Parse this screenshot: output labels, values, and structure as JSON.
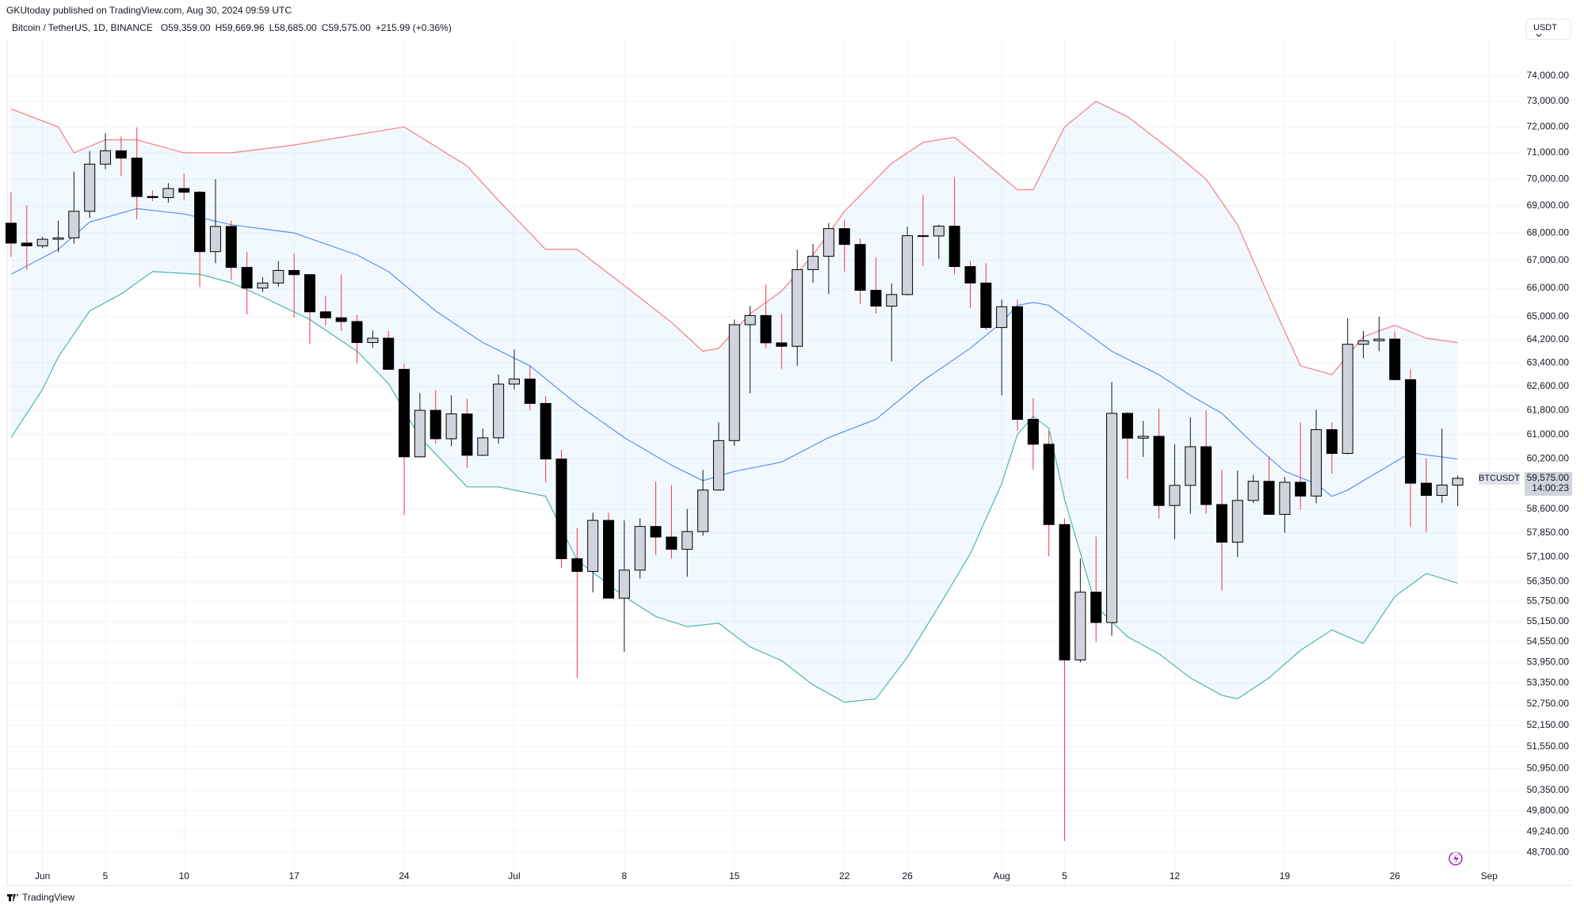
{
  "header": {
    "published": "GKUtoday published on TradingView.com, Aug 30, 2024 09:59 UTC",
    "symbol": "Bitcoin / TetherUS, 1D, BINANCE",
    "legend": [
      "O59,359.00",
      "H59,669.96",
      "L58,685.00",
      "C59,575.00",
      "+215.99 (+0.36%)"
    ],
    "currency": "USDT"
  },
  "footer": {
    "brand": "TradingView"
  },
  "chart_data": {
    "type": "candlestick",
    "log_scale": true,
    "grid": true,
    "ylim": [
      48371,
      75470
    ],
    "yticks": [
      {
        "value": 74000,
        "label": "74,000.00"
      },
      {
        "value": 73000,
        "label": "73,000.00"
      },
      {
        "value": 72000,
        "label": "72,000.00"
      },
      {
        "value": 71000,
        "label": "71,000.00"
      },
      {
        "value": 70000,
        "label": "70,000.00"
      },
      {
        "value": 69000,
        "label": "69,000.00"
      },
      {
        "value": 68000,
        "label": "68,000.00"
      },
      {
        "value": 67000,
        "label": "67,000.00"
      },
      {
        "value": 66000,
        "label": "66,000.00"
      },
      {
        "value": 65000,
        "label": "65,000.00"
      },
      {
        "value": 64200,
        "label": "64,200.00"
      },
      {
        "value": 63400,
        "label": "63,400.00"
      },
      {
        "value": 62600,
        "label": "62,600.00"
      },
      {
        "value": 61800,
        "label": "61,800.00"
      },
      {
        "value": 61000,
        "label": "61,000.00"
      },
      {
        "value": 60200,
        "label": "60,200.00"
      },
      {
        "value": 58600,
        "label": "58,600.00"
      },
      {
        "value": 57850,
        "label": "57,850.00"
      },
      {
        "value": 57100,
        "label": "57,100.00"
      },
      {
        "value": 56350,
        "label": "56,350.00"
      },
      {
        "value": 55750,
        "label": "55,750.00"
      },
      {
        "value": 55150,
        "label": "55,150.00"
      },
      {
        "value": 54550,
        "label": "54,550.00"
      },
      {
        "value": 53950,
        "label": "53,950.00"
      },
      {
        "value": 53350,
        "label": "53,350.00"
      },
      {
        "value": 52750,
        "label": "52,750.00"
      },
      {
        "value": 52150,
        "label": "52,150.00"
      },
      {
        "value": 51550,
        "label": "51,550.00"
      },
      {
        "value": 50950,
        "label": "50,950.00"
      },
      {
        "value": 50350,
        "label": "50,350.00"
      },
      {
        "value": 49800,
        "label": "49,800.00"
      },
      {
        "value": 49240,
        "label": "49,240.00"
      },
      {
        "value": 48700,
        "label": "48,700.00"
      }
    ],
    "xlim": [
      -0.25,
      96
    ],
    "xticks": [
      {
        "value": 2,
        "label": "Jun"
      },
      {
        "value": 6,
        "label": "5"
      },
      {
        "value": 11,
        "label": "10"
      },
      {
        "value": 18,
        "label": "17"
      },
      {
        "value": 25,
        "label": "24"
      },
      {
        "value": 32,
        "label": "Jul"
      },
      {
        "value": 39,
        "label": "8"
      },
      {
        "value": 46,
        "label": "15"
      },
      {
        "value": 53,
        "label": "22"
      },
      {
        "value": 57,
        "label": "26"
      },
      {
        "value": 63,
        "label": "Aug"
      },
      {
        "value": 67,
        "label": "5"
      },
      {
        "value": 74,
        "label": "12"
      },
      {
        "value": 81,
        "label": "19"
      },
      {
        "value": 88,
        "label": "26"
      },
      {
        "value": 94,
        "label": "Sep"
      }
    ],
    "candles": {
      "open": [
        68360,
        67630,
        67530,
        67770,
        67820,
        68800,
        70570,
        71080,
        70800,
        69350,
        69310,
        69650,
        69510,
        67320,
        68240,
        66750,
        66010,
        66190,
        66640,
        66490,
        65170,
        64960,
        64830,
        64100,
        64250,
        63180,
        60270,
        61800,
        60860,
        61680,
        60320,
        60890,
        62680,
        62850,
        62030,
        60200,
        57050,
        56660,
        58240,
        55850,
        56700,
        58050,
        57720,
        57340,
        57890,
        59200,
        60800,
        64720,
        65040,
        64090,
        63970,
        66670,
        67150,
        68160,
        67580,
        65930,
        65370,
        65780,
        67900,
        67890,
        68250,
        66780,
        66190,
        64620,
        65350,
        61500,
        60680,
        58110,
        54020,
        56030,
        55120,
        61700,
        60880,
        60940,
        58710,
        59350,
        60600,
        58740,
        57560,
        58870,
        59480,
        58430,
        59450,
        59010,
        61160,
        60380,
        64040,
        64160,
        64220,
        62830,
        59420,
        59030,
        59359
      ],
      "high": [
        69500,
        69020,
        67860,
        68450,
        70290,
        71070,
        71760,
        71630,
        71990,
        69580,
        69850,
        70200,
        69560,
        69999,
        68450,
        67300,
        66400,
        66980,
        67250,
        66500,
        65730,
        66490,
        65060,
        64520,
        64500,
        63370,
        62380,
        62480,
        62300,
        62180,
        61200,
        63000,
        63860,
        63290,
        62290,
        60500,
        58000,
        58480,
        58480,
        58240,
        58300,
        59470,
        59360,
        58600,
        59850,
        61400,
        64900,
        65380,
        66130,
        65100,
        67390,
        67600,
        68370,
        68480,
        67800,
        67100,
        66170,
        68230,
        69400,
        68300,
        70080,
        66980,
        66900,
        65600,
        65600,
        62200,
        61130,
        58300,
        57050,
        57730,
        62750,
        61750,
        61450,
        61860,
        60680,
        61570,
        61800,
        59850,
        59820,
        59690,
        60270,
        59620,
        61400,
        61820,
        61400,
        64950,
        64500,
        65000,
        64480,
        63200,
        60230,
        61190,
        59669.96
      ],
      "low": [
        67130,
        66670,
        67450,
        67300,
        67610,
        68560,
        70380,
        70120,
        68500,
        69180,
        69120,
        69220,
        66050,
        66900,
        66300,
        65080,
        65870,
        66060,
        64970,
        64060,
        64690,
        64500,
        63380,
        63920,
        63180,
        58400,
        60250,
        60700,
        60620,
        59900,
        60300,
        60700,
        62500,
        61800,
        59450,
        56770,
        53500,
        56020,
        55850,
        54260,
        56440,
        57160,
        57050,
        56500,
        57760,
        59200,
        60630,
        62370,
        63900,
        63200,
        63300,
        66200,
        65800,
        66600,
        65440,
        65110,
        63450,
        65750,
        66800,
        67050,
        66500,
        65320,
        64530,
        62300,
        61120,
        59850,
        57120,
        49000,
        53950,
        54550,
        54730,
        59550,
        60270,
        58300,
        57650,
        58450,
        58450,
        56080,
        57100,
        58790,
        58430,
        57850,
        58580,
        58780,
        59720,
        60350,
        63560,
        63800,
        62800,
        58030,
        57860,
        58790,
        58685
      ],
      "close": [
        67630,
        67530,
        67770,
        67820,
        68800,
        70570,
        71080,
        70800,
        69350,
        69310,
        69650,
        69510,
        67320,
        68240,
        66750,
        66010,
        66190,
        66640,
        66490,
        65170,
        64960,
        64830,
        64100,
        64250,
        63180,
        60270,
        61800,
        60860,
        61680,
        60320,
        60890,
        62680,
        62850,
        62030,
        60200,
        57050,
        56660,
        58240,
        55850,
        56700,
        58050,
        57720,
        57340,
        57890,
        59200,
        60800,
        64720,
        65040,
        64090,
        63970,
        66670,
        67150,
        68160,
        67580,
        65930,
        65370,
        65780,
        67900,
        67890,
        68250,
        66780,
        66190,
        64620,
        65350,
        61500,
        60680,
        58110,
        54020,
        56030,
        55120,
        61700,
        60880,
        60940,
        58710,
        59350,
        60600,
        58740,
        57560,
        58870,
        59480,
        58430,
        59450,
        59010,
        61160,
        60380,
        64040,
        64160,
        64220,
        62830,
        59420,
        59030,
        59359,
        59575
      ],
      "up_color": "#d1d4dc",
      "down_color": "#000000",
      "border_color": "#000000",
      "up_wick": "#131722",
      "down_wick": "#f23645"
    },
    "bands": [
      {
        "color": "#f77c80",
        "x": [
          0,
          3,
          4,
          6,
          8,
          11,
          14,
          18,
          22,
          25,
          29,
          31,
          34,
          36,
          39,
          42,
          44,
          45,
          47,
          49,
          51,
          53,
          56,
          58,
          60,
          62,
          64,
          65,
          67,
          69,
          71,
          74,
          76,
          78,
          80,
          82,
          84,
          86,
          88,
          90,
          92
        ],
        "values": [
          72700,
          72000,
          71000,
          71500,
          71500,
          71000,
          71000,
          71300,
          71700,
          72000,
          70500,
          69200,
          67400,
          67400,
          66100,
          64800,
          63800,
          63900,
          65100,
          65900,
          67200,
          68800,
          70600,
          71400,
          71600,
          70600,
          69600,
          69600,
          72000,
          73000,
          72400,
          71000,
          70000,
          68300,
          65700,
          63300,
          63000,
          64300,
          64700,
          64250,
          64100
        ]
      },
      {
        "color": "#5b8def",
        "x": [
          0,
          3,
          5,
          8,
          11,
          14,
          18,
          22,
          24,
          27,
          30,
          33,
          36,
          39,
          42,
          44,
          46,
          49,
          52,
          55,
          58,
          61,
          63,
          64,
          65,
          66,
          68,
          70,
          73,
          75,
          77,
          79,
          81,
          83,
          84,
          85,
          87,
          89,
          92
        ],
        "values": [
          66500,
          67400,
          68400,
          68900,
          68700,
          68300,
          68000,
          67200,
          66600,
          65200,
          64100,
          63300,
          62000,
          60900,
          60000,
          59500,
          59800,
          60100,
          60900,
          61500,
          62800,
          63900,
          64800,
          65400,
          65500,
          65400,
          64600,
          63800,
          63000,
          62300,
          61700,
          60700,
          59800,
          59400,
          59000,
          59200,
          59800,
          60400,
          60200
        ]
      },
      {
        "color": "#4db6ac",
        "x": [
          0,
          2,
          3,
          5,
          7,
          9,
          12,
          14,
          16,
          19,
          22,
          24,
          26,
          29,
          31,
          34,
          36,
          39,
          41,
          43,
          45,
          47,
          49,
          51,
          53,
          55,
          57,
          59,
          61,
          63,
          64,
          65,
          66,
          67,
          69,
          71,
          73,
          75,
          77,
          78,
          80,
          82,
          84,
          86,
          88,
          90,
          92
        ],
        "values": [
          60900,
          62500,
          63600,
          65200,
          65800,
          66600,
          66500,
          66200,
          65700,
          64900,
          63800,
          62700,
          60900,
          59300,
          59300,
          59000,
          57000,
          55900,
          55300,
          55000,
          55100,
          54400,
          54000,
          53300,
          52800,
          52900,
          54100,
          55600,
          57200,
          59400,
          61000,
          61600,
          61200,
          58900,
          55600,
          54700,
          54200,
          53500,
          53000,
          52900,
          53500,
          54300,
          54900,
          54500,
          55900,
          56600,
          56300
        ]
      }
    ],
    "band_fill": "#2196f3",
    "symbol_label": "BTCUSDT",
    "last_price_label": "59,575.00",
    "countdown": "14:00:23"
  }
}
